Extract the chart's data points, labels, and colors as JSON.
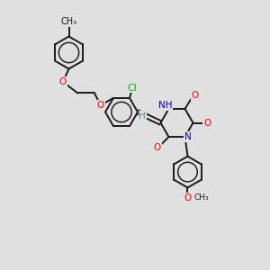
{
  "bg_color": "#e0e0e0",
  "bond_color": "#1a1a1a",
  "bond_width": 1.4,
  "atom_colors": {
    "O": "#ff0000",
    "N": "#0000bb",
    "Cl": "#00bb00",
    "H": "#4a9090",
    "C": "#1a1a1a"
  },
  "font_size": 7.5,
  "xlim": [
    0,
    10
  ],
  "ylim": [
    0,
    10
  ]
}
